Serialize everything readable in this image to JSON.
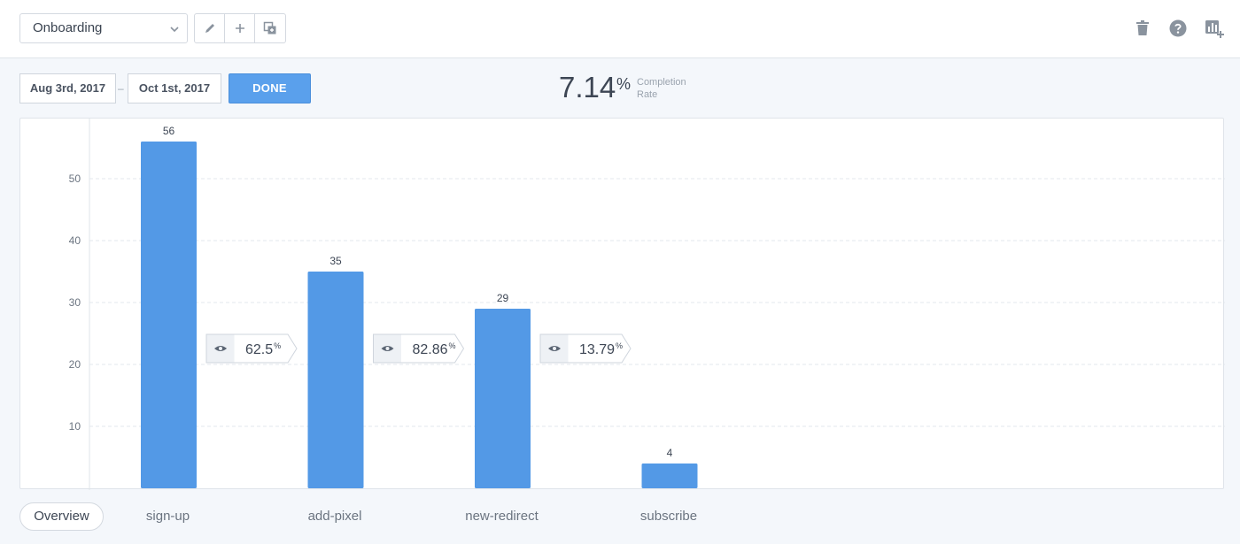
{
  "toolbar": {
    "funnel_select": "Onboarding",
    "edit_icon": "pencil-icon",
    "add_icon": "plus-icon",
    "duplicate_icon": "duplicate-icon",
    "delete_icon": "trash-icon",
    "help_icon": "help-icon",
    "add_chart_icon": "add-chart-icon"
  },
  "date_range": {
    "start": "Aug 3rd, 2017",
    "separator": "–",
    "end": "Oct 1st, 2017",
    "done_label": "DONE"
  },
  "completion": {
    "value": "7.14",
    "unit": "%",
    "label": "Completion Rate"
  },
  "chart_data": {
    "type": "bar",
    "categories": [
      "sign-up",
      "add-pixel",
      "new-redirect",
      "subscribe"
    ],
    "values": [
      56,
      35,
      29,
      4
    ],
    "yticks": [
      10,
      20,
      30,
      40,
      50
    ],
    "ylim": [
      0,
      60
    ],
    "grid": true,
    "bar_color": "#5399e6",
    "conversions": [
      {
        "value": "62.5",
        "unit": "%"
      },
      {
        "value": "82.86",
        "unit": "%"
      },
      {
        "value": "13.79",
        "unit": "%"
      }
    ]
  },
  "footer": {
    "overview_label": "Overview"
  },
  "colors": {
    "accent": "#5aa0ec",
    "bar": "#5399e6",
    "background": "#f4f7fb"
  }
}
